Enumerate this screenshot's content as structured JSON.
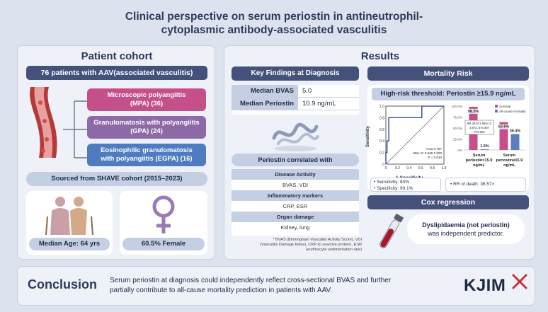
{
  "title_line1": "Clinical perspective on serum periostin in antineutrophil-",
  "title_line2": "cytoplasmic antibody-associated vasculitis",
  "cohort": {
    "header": "Patient cohort",
    "banner": "76 patients with AAV(associated vasculitis)",
    "subtypes": [
      {
        "line1": "Microscopic polyangiitis",
        "line2": "(MPA) (36)",
        "color": "#c44f8a"
      },
      {
        "line1": "Granulomatosis with polyangiitis",
        "line2": "(GPA) (24)",
        "color": "#8d69a8"
      },
      {
        "line1": "Eosinophilic granulomatosis",
        "line2": "with polyangiitis (EGPA) (16)",
        "color": "#4f7cc0"
      }
    ],
    "source": "Sourced from SHAVE cohort (2015–2023)",
    "median_age": "Median Age: 64 yrs",
    "female": "60.5% Female"
  },
  "results": {
    "header": "Results",
    "key_findings": {
      "header": "Key Findings at Diagnosis",
      "rows": [
        {
          "label": "Median BVAS",
          "value": "5.0"
        },
        {
          "label": "Median Periostin",
          "value": "10.9 ng/mL"
        }
      ],
      "corr_header": "Periostin correlated with",
      "groups": [
        {
          "name": "Disease Activity",
          "items": "BVAS, VDI"
        },
        {
          "name": "Inflammatory markers",
          "items": "CRP, ESR"
        },
        {
          "name": "Organ damage",
          "items": "Kidney, lung"
        }
      ],
      "footnote1": "* BVAS (Birmingham Vasculitis Activity Score), VDI",
      "footnote2": "(Vasculitis Damage Index), CRP (C-reactive protein), ESR",
      "footnote3": "(erythrocyte sedimentation rate)"
    },
    "mortality": {
      "header": "Mortality Risk",
      "threshold": "High-risk threshold: Periostin ≥15.9 ng/mL",
      "roc": {
        "ylabel": "Sensitivity",
        "xlabel": "1-Specificity",
        "yticks": [
          "1.0",
          "0.8",
          "0.6",
          "0.4",
          "0.2",
          "0"
        ],
        "xticks": [
          "0",
          "0.2",
          "0.4",
          "0.6",
          "0.8",
          "1.0"
        ],
        "area1": "Area 0.797",
        "area2": "95% CI 0.626 1.000",
        "area3": "P = 0.033"
      },
      "rr_box1": "RR 36.571 95% CI",
      "rr_box2": "3.872, 374.407",
      "rr_box3": "P<0.001",
      "sensitivity": "Sensitivity: 80%",
      "specificity": "Specificity: 90.1%",
      "rr_death": "RR of death: 36.57×"
    },
    "cox": {
      "header": "Cox regression",
      "bold": "Dyslipidaemia (not periostin)",
      "rest": "was independent predictor."
    }
  },
  "chart_data": {
    "type": "bar",
    "categories": [
      "Serum periostin<15.9 ng/mL",
      "Serum periostin≥15.9 ng/mL"
    ],
    "series": [
      {
        "name": "Survival",
        "values": [
          98.5,
          63.6
        ],
        "color": "#c44f8a"
      },
      {
        "name": "All-cause mortality",
        "values": [
          1.5,
          36.4
        ],
        "color": "#5b7ec3"
      }
    ],
    "data_labels": [
      [
        "98.5%",
        "1.5%"
      ],
      [
        "63.6%",
        "36.4%"
      ]
    ],
    "yticks": [
      "100.0%",
      "75.0%",
      "50.0%",
      "25.0%",
      ".0%"
    ],
    "ylim": [
      0,
      100
    ],
    "cat_labels": [
      [
        "Serum",
        "periostin<15.9",
        "ng/mL"
      ],
      [
        "Serum",
        "periostin≥15.9",
        "ng/mL"
      ]
    ]
  },
  "conclusion": {
    "label": "Conclusion",
    "line1": "Serum periostin at diagnosis could independently reflect cross-sectional BVAS and further",
    "line2": "partially contribute to all-cause mortality prediction in patients with AAV.",
    "logo": "KJIM"
  }
}
